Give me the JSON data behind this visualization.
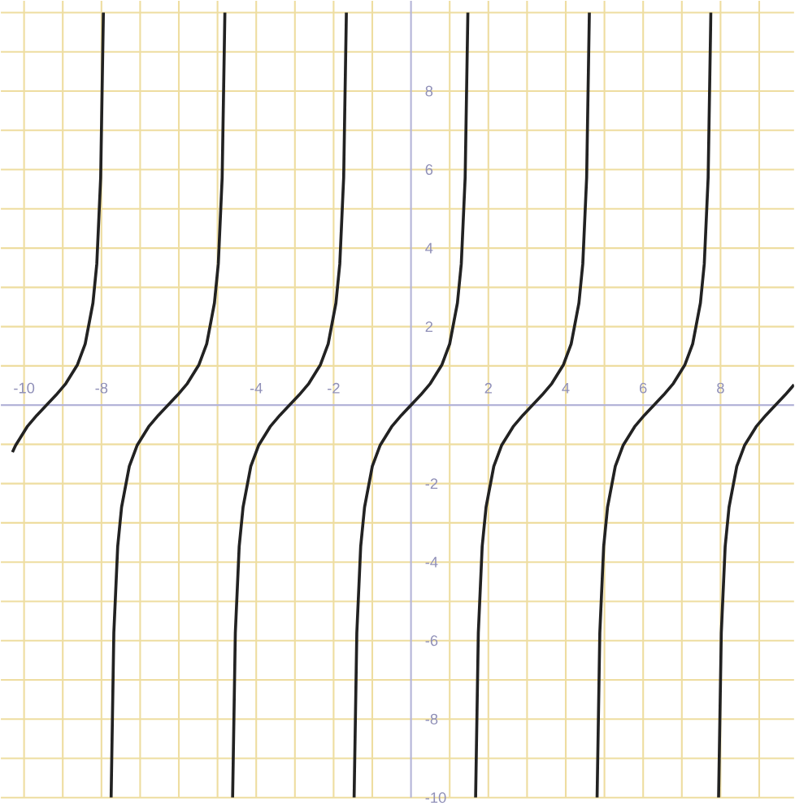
{
  "chart_data": {
    "type": "line",
    "xlim": [
      -10.6,
      9.9
    ],
    "ylim": [
      -10,
      10.3
    ],
    "xticks": [
      -10,
      {
        "value": -9,
        "label": null
      },
      -8,
      {
        "value": -7,
        "label": null
      },
      {
        "value": -6,
        "label": null
      },
      {
        "value": -5,
        "label": null
      },
      -4,
      {
        "value": -3,
        "label": null
      },
      -2,
      {
        "value": -1,
        "label": null
      },
      {
        "value": 0,
        "label": null
      },
      {
        "value": 1,
        "label": null
      },
      2,
      {
        "value": 3,
        "label": null
      },
      4,
      {
        "value": 5,
        "label": null
      },
      6,
      {
        "value": 7,
        "label": null
      },
      8,
      {
        "value": 9,
        "label": null
      }
    ],
    "yticks": [
      -10,
      {
        "value": -9,
        "label": null
      },
      -8,
      {
        "value": -7,
        "label": null
      },
      -6,
      {
        "value": -5,
        "label": null
      },
      -4,
      {
        "value": -3,
        "label": null
      },
      -2,
      {
        "value": -1,
        "label": null
      },
      {
        "value": 0,
        "label": null
      },
      {
        "value": 1,
        "label": null
      },
      2,
      {
        "value": 3,
        "label": null
      },
      4,
      {
        "value": 5,
        "label": null
      },
      6,
      {
        "value": 7,
        "label": null
      },
      8,
      {
        "value": 9,
        "label": null
      },
      {
        "value": 10,
        "label": null
      }
    ],
    "grid": true,
    "series": [
      {
        "color": "#222222",
        "x": [
          -10.3,
          -10.22,
          -9.92,
          -9.67,
          -9.42,
          -9.17,
          -8.92,
          -8.62,
          -8.42,
          -8.22,
          -8.12,
          -8.02,
          -7.95
        ],
        "values": [
          -1.2,
          -1.03,
          -0.55,
          -0.26,
          0,
          0.26,
          0.55,
          1.03,
          1.56,
          2.6,
          3.6,
          5.8,
          10
        ]
      },
      {
        "color": "#222222",
        "x": [
          -7.75,
          -7.68,
          -7.58,
          -7.48,
          -7.28,
          -7.08,
          -6.78,
          -6.53,
          -6.28,
          -6.03,
          -5.78,
          -5.48,
          -5.28,
          -5.08,
          -4.98,
          -4.88,
          -4.81
        ],
        "values": [
          -10,
          -5.8,
          -3.6,
          -2.6,
          -1.56,
          -1.03,
          -0.55,
          -0.26,
          0,
          0.26,
          0.55,
          1.03,
          1.56,
          2.6,
          3.6,
          5.8,
          10
        ]
      },
      {
        "color": "#222222",
        "x": [
          -4.61,
          -4.54,
          -4.44,
          -4.34,
          -4.14,
          -3.94,
          -3.64,
          -3.39,
          -3.14,
          -2.89,
          -2.64,
          -2.34,
          -2.14,
          -1.94,
          -1.84,
          -1.74,
          -1.67
        ],
        "values": [
          -10,
          -5.8,
          -3.6,
          -2.6,
          -1.56,
          -1.03,
          -0.55,
          -0.26,
          0,
          0.26,
          0.55,
          1.03,
          1.56,
          2.6,
          3.6,
          5.8,
          10
        ]
      },
      {
        "color": "#222222",
        "x": [
          -1.47,
          -1.4,
          -1.3,
          -1.2,
          -1.0,
          -0.8,
          -0.5,
          -0.25,
          0,
          0.25,
          0.5,
          0.8,
          1.0,
          1.2,
          1.3,
          1.4,
          1.47
        ],
        "values": [
          -10,
          -5.8,
          -3.6,
          -2.6,
          -1.56,
          -1.03,
          -0.55,
          -0.26,
          0,
          0.26,
          0.55,
          1.03,
          1.56,
          2.6,
          3.6,
          5.8,
          10
        ]
      },
      {
        "color": "#222222",
        "x": [
          1.67,
          1.74,
          1.84,
          1.94,
          2.14,
          2.34,
          2.64,
          2.89,
          3.14,
          3.39,
          3.64,
          3.94,
          4.14,
          4.34,
          4.44,
          4.54,
          4.61
        ],
        "values": [
          -10,
          -5.8,
          -3.6,
          -2.6,
          -1.56,
          -1.03,
          -0.55,
          -0.26,
          0,
          0.26,
          0.55,
          1.03,
          1.56,
          2.6,
          3.6,
          5.8,
          10
        ]
      },
      {
        "color": "#222222",
        "x": [
          4.81,
          4.88,
          4.98,
          5.08,
          5.28,
          5.48,
          5.78,
          6.03,
          6.28,
          6.53,
          6.78,
          7.08,
          7.28,
          7.48,
          7.58,
          7.68,
          7.75
        ],
        "values": [
          -10,
          -5.8,
          -3.6,
          -2.6,
          -1.56,
          -1.03,
          -0.55,
          -0.26,
          0,
          0.26,
          0.55,
          1.03,
          1.56,
          2.6,
          3.6,
          5.8,
          10
        ]
      },
      {
        "color": "#222222",
        "x": [
          7.95,
          8.02,
          8.12,
          8.22,
          8.42,
          8.62,
          8.92,
          9.17,
          9.42,
          9.67,
          9.9
        ],
        "values": [
          -10,
          -5.8,
          -3.6,
          -2.6,
          -1.56,
          -1.03,
          -0.55,
          -0.26,
          0,
          0.26,
          0.52
        ]
      }
    ]
  }
}
